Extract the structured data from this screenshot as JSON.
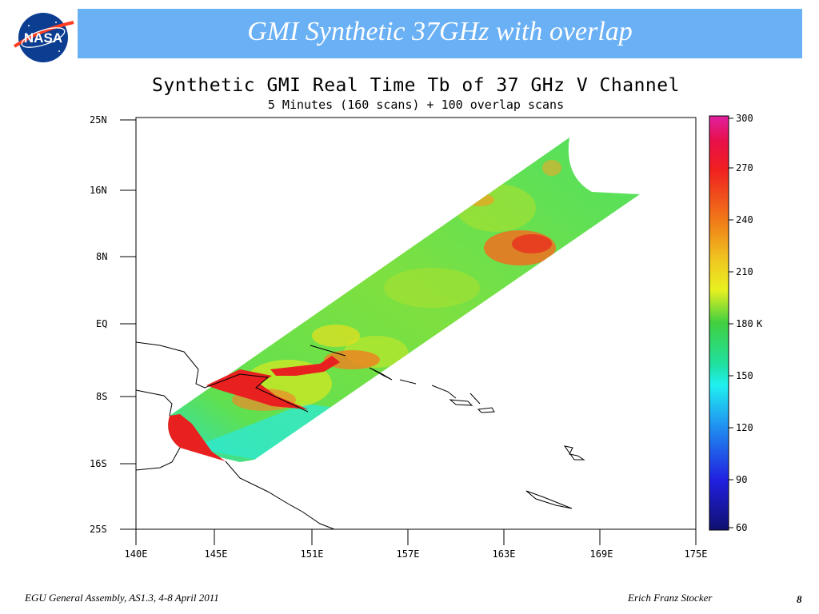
{
  "header": {
    "title": "GMI Synthetic 37GHz with overlap",
    "logo_text": "NASA"
  },
  "map": {
    "title": "Synthetic GMI Real Time Tb of 37 GHz V Channel",
    "subtitle": "5 Minutes (160 scans) + 100 overlap scans",
    "lat_labels": [
      "25N",
      "16N",
      "8N",
      "EQ",
      "8S",
      "16S",
      "25S"
    ],
    "lon_labels": [
      "140E",
      "145E",
      "151E",
      "157E",
      "163E",
      "169E",
      "175E"
    ],
    "colorbar": {
      "ticks": [
        "300",
        "270",
        "240",
        "210",
        "180",
        "150",
        "120",
        "90",
        "60"
      ],
      "unit": "K"
    }
  },
  "footer": {
    "conference": "EGU General Assembly, AS1.3, 4-8 April 2011",
    "author": "Erich Franz Stocker",
    "page": "8"
  },
  "colors": {
    "title_bar": "#6ab0f5",
    "swath_base": "#55e03a",
    "hot": "#e82020",
    "warm": "#f07020"
  }
}
